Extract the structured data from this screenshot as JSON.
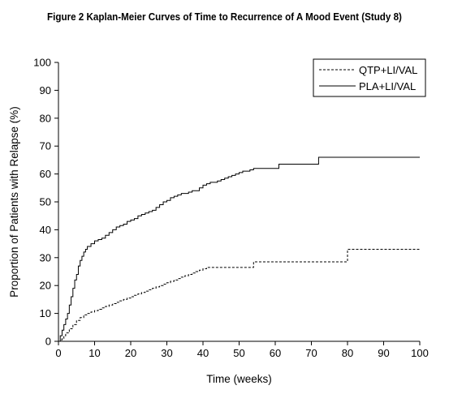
{
  "chart_data": {
    "type": "line",
    "title": "Figure 2 Kaplan-Meier Curves of Time to Recurrence of A Mood Event (Study 8)",
    "xlabel": "Time (weeks)",
    "ylabel": "Proportion of Patients with Relapse (%)",
    "xlim": [
      0,
      100
    ],
    "ylim": [
      0,
      100
    ],
    "xticks": [
      0,
      10,
      20,
      30,
      40,
      50,
      60,
      70,
      80,
      90,
      100
    ],
    "yticks": [
      0,
      10,
      20,
      30,
      40,
      50,
      60,
      70,
      80,
      90,
      100
    ],
    "grid": false,
    "legend_position": "top-right",
    "series": [
      {
        "name": "QTP+LI/VAL",
        "line_style": "dashed",
        "color": "#000000",
        "x": [
          0,
          0.5,
          1,
          1.5,
          2,
          3,
          4,
          5,
          6,
          7,
          8,
          9,
          10,
          11,
          12,
          13,
          14,
          15,
          16,
          17,
          18,
          19,
          20,
          21,
          22,
          23,
          24,
          25,
          26,
          27,
          28,
          29,
          30,
          31,
          32,
          33,
          34,
          35,
          36,
          37,
          38,
          39,
          40,
          41,
          42,
          54,
          80,
          100
        ],
        "y": [
          0,
          0.5,
          1,
          2,
          3,
          4.5,
          6,
          7.5,
          8.5,
          9.5,
          10,
          10.5,
          11,
          11.5,
          12,
          12.5,
          13,
          13.5,
          14,
          14.5,
          15,
          15.5,
          16,
          16.5,
          17,
          17.5,
          18,
          18.5,
          19,
          19.5,
          20,
          20.5,
          21,
          21.5,
          22,
          22.5,
          23,
          23.5,
          24,
          24.5,
          25,
          25.5,
          26,
          26.5,
          26.5,
          28.5,
          33,
          33
        ]
      },
      {
        "name": "PLA+LI/VAL",
        "line_style": "solid",
        "color": "#000000",
        "x": [
          0,
          0.5,
          1,
          1.5,
          2,
          2.5,
          3,
          3.5,
          4,
          4.5,
          5,
          5.5,
          6,
          6.5,
          7,
          7.5,
          8,
          9,
          10,
          11,
          12,
          13,
          14,
          15,
          16,
          17,
          18,
          19,
          20,
          21,
          22,
          23,
          24,
          25,
          26,
          27,
          28,
          29,
          30,
          31,
          32,
          33,
          34,
          35,
          36,
          37,
          38,
          39,
          40,
          41,
          42,
          43,
          44,
          45,
          46,
          47,
          48,
          49,
          50,
          51,
          52,
          53,
          54,
          61,
          72,
          100
        ],
        "y": [
          0,
          2,
          4,
          6,
          8,
          10,
          13,
          16,
          19,
          22,
          24,
          27,
          29,
          30.5,
          32,
          33,
          34,
          35,
          36,
          36.5,
          37,
          38,
          39,
          40,
          41,
          41.5,
          42,
          43,
          43.5,
          44,
          45,
          45.5,
          46,
          46.5,
          47,
          48,
          49,
          50,
          50.5,
          51.5,
          52,
          52.5,
          53,
          53,
          53.5,
          54,
          54,
          55,
          56,
          56.5,
          57,
          57,
          57.5,
          58,
          58.5,
          59,
          59.5,
          60,
          60.5,
          61,
          61,
          61.5,
          62,
          63.5,
          66,
          66
        ]
      }
    ]
  }
}
